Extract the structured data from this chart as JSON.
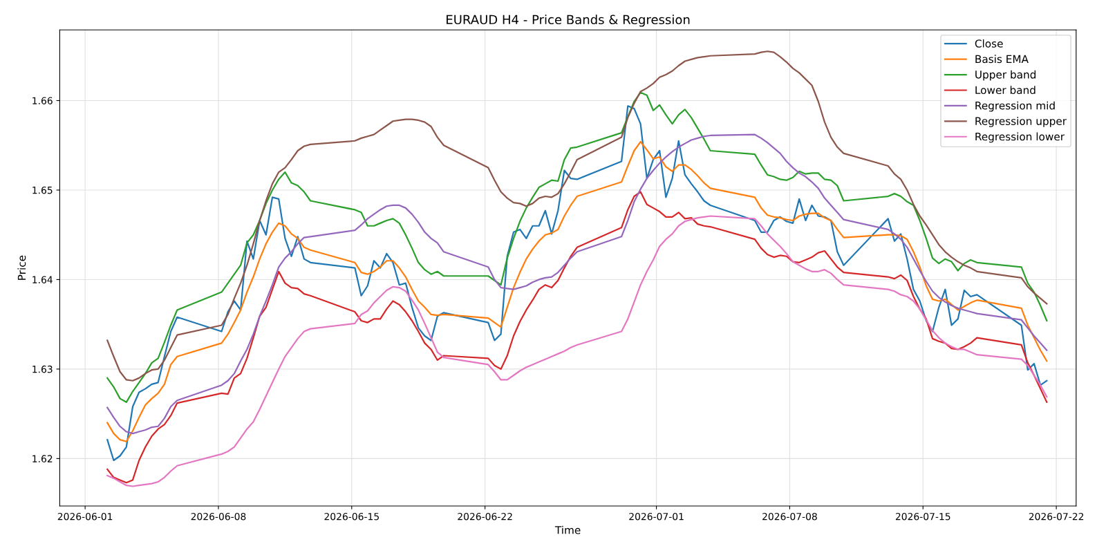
{
  "chart_data": {
    "type": "line",
    "title": "EURAUD H4 - Price Bands & Regression",
    "xlabel": "Time",
    "ylabel": "Price",
    "x": [
      "2026-06-02T04:00",
      "2026-06-02T12:00",
      "2026-06-02T20:00",
      "2026-06-03T04:00",
      "2026-06-03T12:00",
      "2026-06-03T20:00",
      "2026-06-04T04:00",
      "2026-06-04T12:00",
      "2026-06-04T20:00",
      "2026-06-05T04:00",
      "2026-06-05T12:00",
      "2026-06-05T20:00",
      "2026-06-08T04:00",
      "2026-06-08T12:00",
      "2026-06-08T20:00",
      "2026-06-09T04:00",
      "2026-06-09T12:00",
      "2026-06-09T20:00",
      "2026-06-10T04:00",
      "2026-06-10T12:00",
      "2026-06-10T20:00",
      "2026-06-11T04:00",
      "2026-06-11T12:00",
      "2026-06-11T20:00",
      "2026-06-12T04:00",
      "2026-06-12T12:00",
      "2026-06-12T20:00",
      "2026-06-15T04:00",
      "2026-06-15T12:00",
      "2026-06-15T20:00",
      "2026-06-16T04:00",
      "2026-06-16T12:00",
      "2026-06-16T20:00",
      "2026-06-17T04:00",
      "2026-06-17T12:00",
      "2026-06-17T20:00",
      "2026-06-18T04:00",
      "2026-06-18T12:00",
      "2026-06-18T20:00",
      "2026-06-19T04:00",
      "2026-06-19T12:00",
      "2026-06-19T20:00",
      "2026-06-22T04:00",
      "2026-06-22T12:00",
      "2026-06-22T20:00",
      "2026-06-23T04:00",
      "2026-06-23T12:00",
      "2026-06-23T20:00",
      "2026-06-24T04:00",
      "2026-06-24T12:00",
      "2026-06-24T20:00",
      "2026-06-25T04:00",
      "2026-06-25T12:00",
      "2026-06-25T20:00",
      "2026-06-26T04:00",
      "2026-06-26T12:00",
      "2026-06-26T20:00",
      "2026-06-29T04:00",
      "2026-06-29T12:00",
      "2026-06-29T20:00",
      "2026-06-30T04:00",
      "2026-06-30T12:00",
      "2026-06-30T20:00",
      "2026-07-01T04:00",
      "2026-07-01T12:00",
      "2026-07-01T20:00",
      "2026-07-02T04:00",
      "2026-07-02T12:00",
      "2026-07-02T20:00",
      "2026-07-03T04:00",
      "2026-07-03T12:00",
      "2026-07-03T20:00",
      "2026-07-06T04:00",
      "2026-07-06T12:00",
      "2026-07-06T20:00",
      "2026-07-07T04:00",
      "2026-07-07T12:00",
      "2026-07-07T20:00",
      "2026-07-08T04:00",
      "2026-07-08T12:00",
      "2026-07-08T20:00",
      "2026-07-09T04:00",
      "2026-07-09T12:00",
      "2026-07-09T20:00",
      "2026-07-10T04:00",
      "2026-07-10T12:00",
      "2026-07-10T20:00",
      "2026-07-13T04:00",
      "2026-07-13T12:00",
      "2026-07-13T20:00",
      "2026-07-14T04:00",
      "2026-07-14T12:00",
      "2026-07-14T20:00",
      "2026-07-15T04:00",
      "2026-07-15T12:00",
      "2026-07-15T20:00",
      "2026-07-16T04:00",
      "2026-07-16T12:00",
      "2026-07-16T20:00",
      "2026-07-17T04:00",
      "2026-07-17T12:00",
      "2026-07-17T20:00",
      "2026-07-20T04:00",
      "2026-07-20T12:00",
      "2026-07-20T20:00",
      "2026-07-21T04:00",
      "2026-07-21T12:00"
    ],
    "series": [
      {
        "name": "Close",
        "color": "#1f77b4",
        "values": [
          1.6221,
          1.6198,
          1.6203,
          1.6213,
          1.6258,
          1.6274,
          1.6278,
          1.6283,
          1.6285,
          1.6314,
          1.6342,
          1.6358,
          1.6342,
          1.6364,
          1.6376,
          1.6366,
          1.6443,
          1.6423,
          1.6466,
          1.645,
          1.6492,
          1.649,
          1.6446,
          1.6426,
          1.6448,
          1.6423,
          1.6419,
          1.6413,
          1.6382,
          1.6393,
          1.6421,
          1.6413,
          1.6429,
          1.6419,
          1.6394,
          1.6396,
          1.6369,
          1.6346,
          1.6337,
          1.6332,
          1.6359,
          1.6363,
          1.6352,
          1.6332,
          1.6339,
          1.6426,
          1.6453,
          1.6456,
          1.6446,
          1.646,
          1.646,
          1.6477,
          1.6451,
          1.6477,
          1.6522,
          1.6513,
          1.6512,
          1.6532,
          1.6594,
          1.6591,
          1.6574,
          1.6513,
          1.6534,
          1.6544,
          1.6492,
          1.6513,
          1.6555,
          1.6517,
          1.6507,
          1.6498,
          1.6488,
          1.6483,
          1.6466,
          1.6453,
          1.6453,
          1.6466,
          1.647,
          1.6465,
          1.6463,
          1.649,
          1.6466,
          1.6483,
          1.6471,
          1.647,
          1.6466,
          1.6431,
          1.6416,
          1.6468,
          1.6443,
          1.6451,
          1.6423,
          1.6389,
          1.6376,
          1.6354,
          1.6342,
          1.6369,
          1.6389,
          1.6349,
          1.6356,
          1.6388,
          1.6381,
          1.6383,
          1.6349,
          1.6299,
          1.6306,
          1.6282,
          1.6287
        ]
      },
      {
        "name": "Basis EMA",
        "color": "#ff7f0e",
        "values": [
          1.624,
          1.6228,
          1.6221,
          1.6219,
          1.6231,
          1.6246,
          1.626,
          1.6267,
          1.6273,
          1.6283,
          1.6305,
          1.6314,
          1.6329,
          1.6339,
          1.6352,
          1.6366,
          1.6386,
          1.6403,
          1.6423,
          1.644,
          1.6453,
          1.6463,
          1.646,
          1.6451,
          1.6446,
          1.6436,
          1.6433,
          1.6419,
          1.6408,
          1.6406,
          1.6409,
          1.6414,
          1.6421,
          1.6421,
          1.6413,
          1.6403,
          1.6389,
          1.6376,
          1.6369,
          1.6361,
          1.636,
          1.6361,
          1.6357,
          1.6352,
          1.6347,
          1.6369,
          1.6391,
          1.6408,
          1.6423,
          1.6434,
          1.6443,
          1.645,
          1.6452,
          1.6456,
          1.6471,
          1.6483,
          1.6493,
          1.6509,
          1.6527,
          1.6544,
          1.6554,
          1.6545,
          1.6535,
          1.6537,
          1.6526,
          1.6521,
          1.6528,
          1.6528,
          1.6523,
          1.6516,
          1.6508,
          1.6502,
          1.6492,
          1.648,
          1.6472,
          1.647,
          1.6469,
          1.6467,
          1.6466,
          1.6471,
          1.6473,
          1.6474,
          1.6474,
          1.6469,
          1.6466,
          1.6456,
          1.6447,
          1.645,
          1.645,
          1.6449,
          1.6445,
          1.6431,
          1.6414,
          1.6393,
          1.6378,
          1.6376,
          1.6378,
          1.6372,
          1.6366,
          1.637,
          1.6374,
          1.6377,
          1.6368,
          1.6349,
          1.6335,
          1.6321,
          1.6309
        ]
      },
      {
        "name": "Upper band",
        "color": "#2ca02c",
        "values": [
          1.629,
          1.628,
          1.6267,
          1.6263,
          1.6275,
          1.6285,
          1.6295,
          1.6307,
          1.6312,
          1.633,
          1.6349,
          1.6366,
          1.6386,
          1.6396,
          1.6406,
          1.6416,
          1.6441,
          1.645,
          1.6466,
          1.6485,
          1.65,
          1.6512,
          1.652,
          1.6508,
          1.6505,
          1.6498,
          1.6488,
          1.6478,
          1.6475,
          1.646,
          1.646,
          1.6463,
          1.6466,
          1.6468,
          1.6463,
          1.645,
          1.6435,
          1.6419,
          1.6411,
          1.6406,
          1.6409,
          1.6404,
          1.6404,
          1.6399,
          1.6394,
          1.6424,
          1.6446,
          1.6465,
          1.648,
          1.6492,
          1.6503,
          1.6507,
          1.6511,
          1.651,
          1.6534,
          1.6547,
          1.6548,
          1.6564,
          1.6582,
          1.6599,
          1.6609,
          1.6606,
          1.6589,
          1.6595,
          1.6584,
          1.6574,
          1.6584,
          1.659,
          1.6581,
          1.6569,
          1.6557,
          1.6544,
          1.654,
          1.6528,
          1.6517,
          1.6515,
          1.6512,
          1.6511,
          1.6514,
          1.6521,
          1.6518,
          1.6519,
          1.6519,
          1.6512,
          1.6511,
          1.6505,
          1.6488,
          1.6493,
          1.6496,
          1.6493,
          1.6487,
          1.6483,
          1.6466,
          1.6446,
          1.6424,
          1.6418,
          1.6423,
          1.642,
          1.641,
          1.6418,
          1.6422,
          1.6419,
          1.6414,
          1.6396,
          1.6386,
          1.6371,
          1.6354
        ]
      },
      {
        "name": "Lower band",
        "color": "#d62728",
        "values": [
          1.6188,
          1.6179,
          1.6176,
          1.6173,
          1.6176,
          1.6198,
          1.6213,
          1.6225,
          1.6233,
          1.6238,
          1.6248,
          1.6262,
          1.6273,
          1.6272,
          1.629,
          1.6295,
          1.6312,
          1.6335,
          1.6359,
          1.6369,
          1.6389,
          1.6409,
          1.6396,
          1.6391,
          1.639,
          1.6384,
          1.6382,
          1.6364,
          1.6354,
          1.6352,
          1.6356,
          1.6356,
          1.6367,
          1.6376,
          1.6372,
          1.6364,
          1.6354,
          1.6342,
          1.6329,
          1.6322,
          1.631,
          1.6315,
          1.6312,
          1.6304,
          1.63,
          1.6315,
          1.6337,
          1.6353,
          1.6366,
          1.6377,
          1.6389,
          1.6394,
          1.6391,
          1.6399,
          1.6413,
          1.6426,
          1.6436,
          1.6458,
          1.6478,
          1.6493,
          1.6498,
          1.6484,
          1.648,
          1.6476,
          1.647,
          1.647,
          1.6475,
          1.6468,
          1.6469,
          1.6462,
          1.646,
          1.6459,
          1.6445,
          1.6435,
          1.6428,
          1.6425,
          1.6427,
          1.6426,
          1.642,
          1.6419,
          1.6422,
          1.6425,
          1.643,
          1.6432,
          1.6423,
          1.6414,
          1.6408,
          1.6403,
          1.6401,
          1.6405,
          1.6399,
          1.6381,
          1.6367,
          1.6356,
          1.6334,
          1.6331,
          1.6329,
          1.6323,
          1.6322,
          1.6325,
          1.6329,
          1.6335,
          1.6327,
          1.6307,
          1.6293,
          1.6278,
          1.6263
        ]
      },
      {
        "name": "Regression mid",
        "color": "#9467bd",
        "values": [
          1.6257,
          1.6246,
          1.6236,
          1.623,
          1.6228,
          1.623,
          1.6232,
          1.6235,
          1.6236,
          1.6245,
          1.6258,
          1.6265,
          1.6282,
          1.6287,
          1.6295,
          1.6309,
          1.6322,
          1.6339,
          1.6359,
          1.6376,
          1.6394,
          1.6414,
          1.6424,
          1.6431,
          1.644,
          1.6447,
          1.6448,
          1.6455,
          1.6461,
          1.6468,
          1.6473,
          1.6478,
          1.6482,
          1.6483,
          1.6483,
          1.648,
          1.6473,
          1.6464,
          1.6453,
          1.6446,
          1.6441,
          1.6431,
          1.6414,
          1.64,
          1.6391,
          1.639,
          1.6389,
          1.6391,
          1.6393,
          1.6397,
          1.64,
          1.6402,
          1.6403,
          1.6408,
          1.6416,
          1.6424,
          1.6431,
          1.6448,
          1.6466,
          1.6487,
          1.6501,
          1.6513,
          1.6522,
          1.653,
          1.6537,
          1.6543,
          1.6548,
          1.6552,
          1.6556,
          1.6558,
          1.656,
          1.6561,
          1.6562,
          1.6558,
          1.6553,
          1.6547,
          1.6541,
          1.6532,
          1.6525,
          1.6519,
          1.6515,
          1.6509,
          1.6502,
          1.6491,
          1.6483,
          1.6475,
          1.6467,
          1.6456,
          1.6451,
          1.6445,
          1.6436,
          1.6423,
          1.641,
          1.6398,
          1.6387,
          1.638,
          1.6375,
          1.6371,
          1.6368,
          1.6366,
          1.6364,
          1.6362,
          1.6355,
          1.6346,
          1.6337,
          1.6329,
          1.6321
        ]
      },
      {
        "name": "Regression upper",
        "color": "#8c564b",
        "values": [
          1.6332,
          1.6314,
          1.6297,
          1.6288,
          1.6287,
          1.629,
          1.6295,
          1.6299,
          1.63,
          1.631,
          1.6324,
          1.6338,
          1.6349,
          1.6361,
          1.6379,
          1.6396,
          1.6416,
          1.644,
          1.6466,
          1.6488,
          1.6507,
          1.652,
          1.6525,
          1.6534,
          1.6544,
          1.6549,
          1.6551,
          1.6555,
          1.6558,
          1.656,
          1.6562,
          1.6567,
          1.6572,
          1.6577,
          1.6578,
          1.6579,
          1.6579,
          1.6578,
          1.6576,
          1.6571,
          1.6559,
          1.655,
          1.6525,
          1.6511,
          1.6498,
          1.6491,
          1.6486,
          1.6485,
          1.6482,
          1.6485,
          1.6491,
          1.6493,
          1.6492,
          1.6496,
          1.6507,
          1.652,
          1.6534,
          1.6559,
          1.6581,
          1.6597,
          1.661,
          1.6614,
          1.6619,
          1.6626,
          1.6629,
          1.6633,
          1.6639,
          1.6644,
          1.6646,
          1.6648,
          1.6649,
          1.665,
          1.6652,
          1.6654,
          1.6655,
          1.6654,
          1.6649,
          1.6643,
          1.6636,
          1.6631,
          1.6624,
          1.6617,
          1.6599,
          1.6576,
          1.6559,
          1.6548,
          1.6541,
          1.6527,
          1.6518,
          1.6512,
          1.65,
          1.6484,
          1.6471,
          1.6461,
          1.645,
          1.6439,
          1.6431,
          1.6425,
          1.642,
          1.6416,
          1.6413,
          1.6409,
          1.6402,
          1.6392,
          1.6385,
          1.6379,
          1.6373
        ]
      },
      {
        "name": "Regression lower",
        "color": "#e377c2",
        "values": [
          1.6181,
          1.6178,
          1.6174,
          1.617,
          1.6169,
          1.617,
          1.6171,
          1.6172,
          1.6174,
          1.6179,
          1.6186,
          1.6192,
          1.6205,
          1.6208,
          1.6213,
          1.6223,
          1.6233,
          1.6241,
          1.6255,
          1.627,
          1.6285,
          1.63,
          1.6314,
          1.6324,
          1.6334,
          1.6342,
          1.6345,
          1.6351,
          1.6361,
          1.6365,
          1.6374,
          1.6381,
          1.6388,
          1.6392,
          1.6391,
          1.6387,
          1.6377,
          1.6366,
          1.6351,
          1.6335,
          1.6319,
          1.6313,
          1.6305,
          1.6297,
          1.6288,
          1.6288,
          1.6293,
          1.6298,
          1.6302,
          1.6305,
          1.6308,
          1.6311,
          1.6314,
          1.6317,
          1.632,
          1.6324,
          1.6327,
          1.6342,
          1.6356,
          1.6375,
          1.6394,
          1.6409,
          1.6422,
          1.6437,
          1.6445,
          1.6451,
          1.646,
          1.6465,
          1.6467,
          1.6469,
          1.647,
          1.6471,
          1.6468,
          1.646,
          1.6451,
          1.6444,
          1.6437,
          1.6429,
          1.642,
          1.6416,
          1.6412,
          1.6409,
          1.6409,
          1.6411,
          1.6407,
          1.64,
          1.6394,
          1.6389,
          1.6387,
          1.6383,
          1.6381,
          1.6376,
          1.6367,
          1.6355,
          1.6343,
          1.6335,
          1.6329,
          1.6325,
          1.6322,
          1.6322,
          1.6319,
          1.6316,
          1.6311,
          1.6304,
          1.6293,
          1.6282,
          1.6269
        ]
      }
    ],
    "xlim": [
      "2026-05-30T16:00",
      "2026-07-23T01:00"
    ],
    "xticks": [
      {
        "value": "2026-06-01",
        "label": "2026-06-01"
      },
      {
        "value": "2026-06-08",
        "label": "2026-06-08"
      },
      {
        "value": "2026-06-15",
        "label": "2026-06-15"
      },
      {
        "value": "2026-06-22",
        "label": "2026-06-22"
      },
      {
        "value": "2026-07-01",
        "label": "2026-07-01"
      },
      {
        "value": "2026-07-08",
        "label": "2026-07-08"
      },
      {
        "value": "2026-07-15",
        "label": "2026-07-15"
      },
      {
        "value": "2026-07-22",
        "label": "2026-07-22"
      }
    ],
    "ylim": [
      1.6147,
      1.6679
    ],
    "yticks": [
      1.62,
      1.63,
      1.64,
      1.65,
      1.66
    ],
    "grid": true,
    "legend": "top right",
    "line_style": "solid",
    "marker": "none"
  }
}
